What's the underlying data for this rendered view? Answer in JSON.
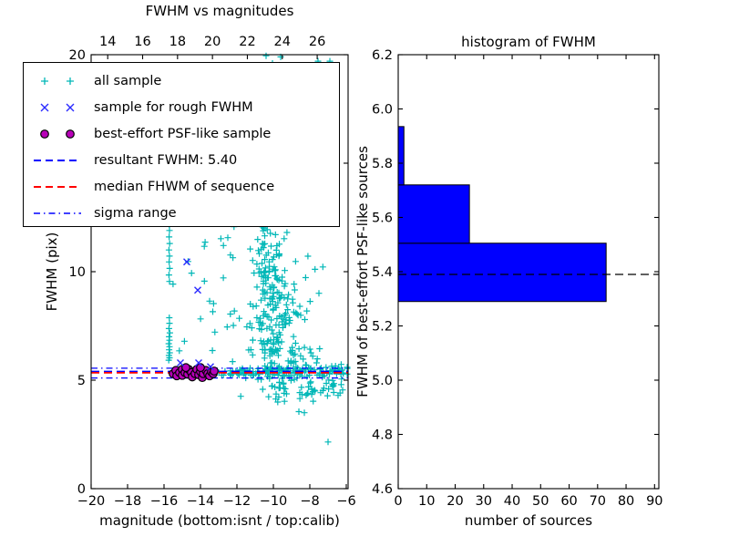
{
  "figure": {
    "bg": "#ffffff"
  },
  "colors": {
    "all_sample": "#00b7b7",
    "rough_sample": "#2a2aff",
    "psf_sample": "#b800b8",
    "psf_edge": "#000000",
    "resultant_line": "#0000ff",
    "median_line": "#ff0000",
    "sigma_line": "#0000ff",
    "hist_bar": "#0000ff",
    "hist_edge": "#000000",
    "hist_dashed": "#000000",
    "axis": "#000000"
  },
  "left_plot": {
    "title": "FWHM vs magnitudes",
    "xlabel": "magnitude (bottom:isnt / top:calib)",
    "ylabel": "FWHM (pix)",
    "legend": {
      "entries": [
        {
          "label": "all sample",
          "marker": "plus2"
        },
        {
          "label": "sample for rough FWHM",
          "marker": "x2"
        },
        {
          "label": "best-effort PSF-like sample",
          "marker": "circle2"
        },
        {
          "label": "resultant FWHM: 5.40",
          "marker": "dashed-blue"
        },
        {
          "label": "median FHWM of sequence",
          "marker": "dashed-red"
        },
        {
          "label": "sigma range",
          "marker": "dashdot-blue"
        }
      ]
    }
  },
  "right_plot": {
    "title": "histogram of FWHM",
    "xlabel": "number of sources",
    "ylabel": "FWHM of best-effort PSF-like sources"
  },
  "chart_data": [
    {
      "type": "scatter",
      "title": "FWHM vs magnitudes",
      "xlabel": "magnitude (bottom:isnt / top:calib)",
      "ylabel": "FWHM (pix)",
      "xlim": [
        -20,
        -5.9
      ],
      "ylim": [
        0,
        20
      ],
      "top_xlim": [
        13.05,
        27.77
      ],
      "x_ticks": {
        "values": [
          -20,
          -18,
          -16,
          -14,
          -12,
          -10,
          -8,
          -6
        ],
        "labels": [
          "−20",
          "−18",
          "−16",
          "−14",
          "−12",
          "−10",
          "−8",
          "−6"
        ]
      },
      "top_ticks": {
        "values": [
          14,
          16,
          18,
          20,
          22,
          24,
          26
        ],
        "labels": [
          "14",
          "16",
          "18",
          "20",
          "22",
          "24",
          "26"
        ]
      },
      "y_ticks": {
        "values": [
          0,
          5,
          10,
          15,
          20
        ],
        "labels": [
          "0",
          "5",
          "10",
          "15",
          "20"
        ]
      },
      "grid": false,
      "legend_position": "upper left",
      "series": [
        {
          "name": "all sample",
          "marker": "plus",
          "color": "#00b7b7",
          "seed": 42,
          "points": [
            [
              -15.74,
              5.92
            ],
            [
              -15.7,
              6.03
            ],
            [
              -15.73,
              6.14
            ],
            [
              -15.69,
              6.26
            ],
            [
              -15.72,
              6.4
            ],
            [
              -15.7,
              6.54
            ],
            [
              -15.74,
              6.68
            ],
            [
              -15.7,
              6.84
            ],
            [
              -15.72,
              7.0
            ],
            [
              -15.68,
              7.18
            ],
            [
              -15.73,
              7.38
            ],
            [
              -15.7,
              7.62
            ],
            [
              -15.71,
              7.88
            ],
            [
              -15.7,
              9.55
            ],
            [
              -15.73,
              9.85
            ],
            [
              -15.69,
              10.15
            ],
            [
              -15.72,
              10.45
            ],
            [
              -15.7,
              10.72
            ],
            [
              -15.73,
              11.0
            ],
            [
              -15.69,
              11.3
            ],
            [
              -15.72,
              11.6
            ],
            [
              -15.7,
              11.9
            ],
            [
              -15.71,
              12.15
            ],
            [
              -15.7,
              12.35
            ],
            [
              -10.4,
              19.95
            ],
            [
              -10.05,
              19.6
            ],
            [
              -9.6,
              19.9
            ],
            [
              -9.25,
              19.5
            ],
            [
              -7.55,
              19.7
            ],
            [
              -6.9,
              19.7
            ],
            [
              -8.6,
              3.55
            ],
            [
              -8.3,
              3.5
            ],
            [
              -7.0,
              2.15
            ],
            [
              -6.45,
              4.3
            ],
            [
              -6.2,
              4.55
            ]
          ],
          "clusters": [
            {
              "dist": "gauss",
              "n": 30,
              "mag_mu": -10.35,
              "mag_sigma": 0.45,
              "fwhm": [
                11.0,
                12.45
              ]
            },
            {
              "dist": "gauss",
              "n": 48,
              "mag_mu": -10.1,
              "mag_sigma": 0.55,
              "fwhm": [
                9.5,
                11.0
              ]
            },
            {
              "dist": "gauss",
              "n": 55,
              "mag_mu": -9.9,
              "mag_sigma": 0.62,
              "fwhm": [
                8.0,
                9.5
              ]
            },
            {
              "dist": "gauss",
              "n": 50,
              "mag_mu": -9.8,
              "mag_sigma": 0.8,
              "fwhm": [
                6.8,
                8.0
              ]
            },
            {
              "dist": "gauss",
              "n": 55,
              "mag_mu": -9.55,
              "mag_sigma": 1.05,
              "fwhm": [
                5.8,
                6.8
              ]
            },
            {
              "dist": "gauss",
              "n": 70,
              "mag_mu": -9.2,
              "mag_sigma": 1.5,
              "fwhm": [
                5.02,
                5.8
              ]
            },
            {
              "dist": "gauss",
              "n": 40,
              "mag_mu": -8.6,
              "mag_sigma": 1.2,
              "fwhm": [
                4.2,
                5.02
              ]
            },
            {
              "dist": "uniform",
              "n": 85,
              "mag": [
                -13.3,
                -6.0
              ],
              "fwhm": [
                5.22,
                5.56
              ]
            },
            {
              "dist": "uniform",
              "n": 26,
              "mag": [
                -15.55,
                -11.9
              ],
              "fwhm": [
                6.0,
                12.5
              ]
            },
            {
              "dist": "uniform",
              "n": 7,
              "mag": [
                -8.35,
                -7.2
              ],
              "fwhm": [
                8.0,
                11.5
              ]
            },
            {
              "dist": "uniform",
              "n": 14,
              "mag": [
                -10.0,
                -6.2
              ],
              "fwhm": [
                3.95,
                4.9
              ]
            }
          ]
        },
        {
          "name": "sample for rough FWHM",
          "marker": "x",
          "color": "#2a2aff",
          "points": [
            [
              -14.75,
              10.45
            ],
            [
              -14.15,
              9.15
            ],
            [
              -15.1,
              5.8
            ],
            [
              -14.1,
              5.8
            ],
            [
              -13.45,
              5.62
            ]
          ]
        },
        {
          "name": "best-effort PSF-like sample",
          "marker": "circle",
          "color": "#b800b8",
          "edge": "#000000",
          "points": [
            [
              -15.5,
              5.3
            ],
            [
              -15.35,
              5.45
            ],
            [
              -15.3,
              5.2
            ],
            [
              -15.15,
              5.35
            ],
            [
              -15.0,
              5.5
            ],
            [
              -15.0,
              5.22
            ],
            [
              -14.85,
              5.35
            ],
            [
              -14.7,
              5.28
            ],
            [
              -14.65,
              5.5
            ],
            [
              -14.5,
              5.35
            ],
            [
              -14.45,
              5.15
            ],
            [
              -14.3,
              5.3
            ],
            [
              -14.2,
              5.5
            ],
            [
              -14.1,
              5.25
            ],
            [
              -14.0,
              5.4
            ],
            [
              -13.9,
              5.12
            ],
            [
              -13.85,
              5.3
            ],
            [
              -13.7,
              5.45
            ],
            [
              -13.6,
              5.3
            ],
            [
              -13.5,
              5.2
            ],
            [
              -13.4,
              5.38
            ],
            [
              -13.3,
              5.3
            ],
            [
              -13.25,
              5.42
            ],
            [
              -14.8,
              5.58
            ],
            [
              -14.0,
              5.58
            ]
          ]
        }
      ],
      "hlines": [
        {
          "name": "resultant FWHM",
          "value": 5.4,
          "style": "dashed",
          "color": "#0000ff",
          "width": 1.8
        },
        {
          "name": "median FHWM of sequence",
          "value": 5.34,
          "style": "dashed",
          "color": "#ff0000",
          "width": 1.8
        },
        {
          "name": "sigma range upper",
          "value": 5.55,
          "style": "dashdot",
          "color": "#0000ff",
          "width": 1.2
        },
        {
          "name": "sigma range lower",
          "value": 5.1,
          "style": "dashdot",
          "color": "#0000ff",
          "width": 1.2
        }
      ]
    },
    {
      "type": "bar",
      "orientation": "horizontal",
      "title": "histogram of FWHM",
      "xlabel": "number of sources",
      "ylabel": "FWHM of best-effort PSF-like sources",
      "xlim": [
        0,
        91.5
      ],
      "ylim": [
        4.6,
        6.2
      ],
      "x_ticks": {
        "values": [
          0,
          10,
          20,
          30,
          40,
          50,
          60,
          70,
          80,
          90
        ],
        "labels": [
          "0",
          "10",
          "20",
          "30",
          "40",
          "50",
          "60",
          "70",
          "80",
          "90"
        ]
      },
      "y_ticks": {
        "values": [
          4.6,
          4.8,
          5.0,
          5.2,
          5.4,
          5.6,
          5.8,
          6.0,
          6.2
        ],
        "labels": [
          "4.6",
          "4.8",
          "5.0",
          "5.2",
          "5.4",
          "5.6",
          "5.8",
          "6.0",
          "6.2"
        ]
      },
      "grid": false,
      "bin_edges": [
        5.29,
        5.505,
        5.72,
        5.935
      ],
      "counts": [
        73,
        25,
        2
      ],
      "bar_color": "#0000ff",
      "edge_color": "#000000",
      "hline": {
        "value": 5.39,
        "style": "dashed",
        "color": "#000000",
        "width": 1.3
      }
    }
  ]
}
